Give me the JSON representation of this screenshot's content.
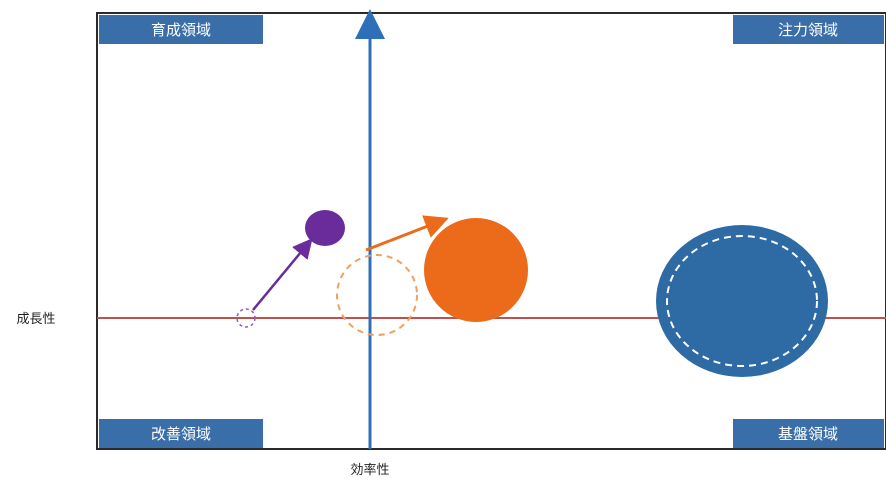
{
  "quadrants": {
    "top_left": "育成領域",
    "top_right": "注力領域",
    "bottom_left": "改善領域",
    "bottom_right": "基盤領域"
  },
  "axes": {
    "vertical_label": "効率性",
    "horizontal_label": "成長性"
  },
  "colors": {
    "frame": "#2b2b2b",
    "label_bg": "#3a6ea8",
    "vertical_axis": "#2f6fb7",
    "horizontal_axis": "#c0504d",
    "purple": "#6a2c9a",
    "orange": "#ec6b1b",
    "blue": "#2e6aa3"
  }
}
